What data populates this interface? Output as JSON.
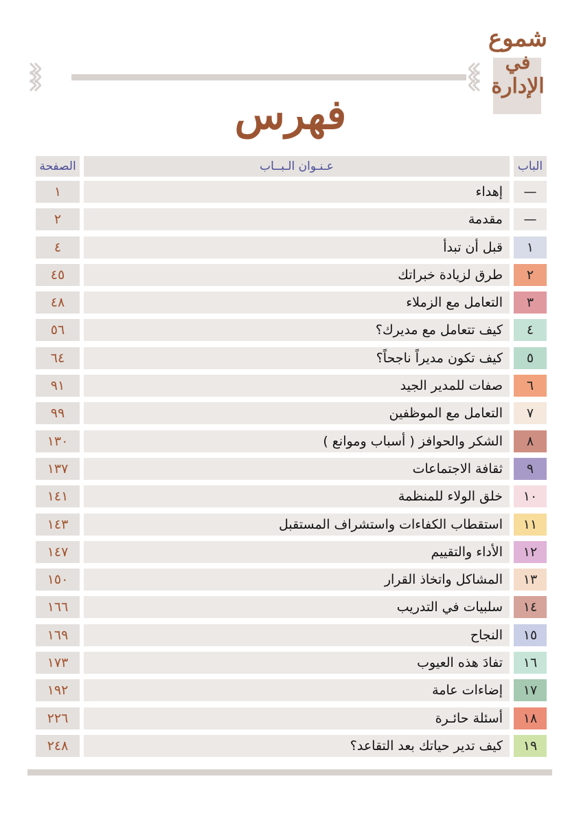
{
  "logo": {
    "line1": "شموع",
    "line2": "في",
    "line3": "الإدارة"
  },
  "title": "فهرس",
  "header": {
    "page": "الصفحة",
    "title": "عـنـوان الـبــاب",
    "chapter": "الباب"
  },
  "rows": [
    {
      "chapter": "—",
      "title": "إهداء",
      "page": "١",
      "color": "#ece9e6"
    },
    {
      "chapter": "—",
      "title": "مقدمة",
      "page": "٢",
      "color": "#ece9e6"
    },
    {
      "chapter": "١",
      "title": "قبل أن تبدأ",
      "page": "٤",
      "color": "#d8dbe8"
    },
    {
      "chapter": "٢",
      "title": "طرق لزيادة خبراتك",
      "page": "٤٥",
      "color": "#eea07f"
    },
    {
      "chapter": "٣",
      "title": "التعامل مع الزملاء",
      "page": "٤٨",
      "color": "#e0999f"
    },
    {
      "chapter": "٤",
      "title": "كيف تتعامل مع مديرك؟",
      "page": "٥٦",
      "color": "#c5e2d7"
    },
    {
      "chapter": "٥",
      "title": "كيف تكون مديراً ناجحاً؟",
      "page": "٦٤",
      "color": "#b9dbcc"
    },
    {
      "chapter": "٦",
      "title": "صفات للمدير الجيد",
      "page": "٩١",
      "color": "#f2a37e"
    },
    {
      "chapter": "٧",
      "title": "التعامل مع الموظفين",
      "page": "٩٩",
      "color": "#f5e8dd"
    },
    {
      "chapter": "٨",
      "title": "الشكر والحوافز ( أسباب وموانع )",
      "page": "١٣٠",
      "color": "#cf8e82"
    },
    {
      "chapter": "٩",
      "title": "ثقافة الاجتماعات",
      "page": "١٣٧",
      "color": "#a89ac8"
    },
    {
      "chapter": "١٠",
      "title": "خلق الولاء للمنظمة",
      "page": "١٤١",
      "color": "#f6dde2"
    },
    {
      "chapter": "١١",
      "title": "استقطاب الكفاءات واستشراف المستقبل",
      "page": "١٤٣",
      "color": "#f7dc9c"
    },
    {
      "chapter": "١٢",
      "title": "الأداء والتقييم",
      "page": "١٤٧",
      "color": "#e0b4d8"
    },
    {
      "chapter": "١٣",
      "title": "المشاكل واتخاذ القرار",
      "page": "١٥٠",
      "color": "#f5dcc8"
    },
    {
      "chapter": "١٤",
      "title": "سلبيات في التدريب",
      "page": "١٦٦",
      "color": "#d6a39a"
    },
    {
      "chapter": "١٥",
      "title": "النجاح",
      "page": "١٦٩",
      "color": "#c9cfe6"
    },
    {
      "chapter": "١٦",
      "title": "تفادَ هذه العيوب",
      "page": "١٧٣",
      "color": "#c6e5d8"
    },
    {
      "chapter": "١٧",
      "title": "إضاءات عامة",
      "page": "١٩٢",
      "color": "#a5c9b1"
    },
    {
      "chapter": "١٨",
      "title": "أسئلة حائـرة",
      "page": "٢٢٦",
      "color": "#ec8d78"
    },
    {
      "chapter": "١٩",
      "title": "كيف تدير حياتك بعد التقاعد؟",
      "page": "٢٤٨",
      "color": "#cfe3a9"
    }
  ]
}
